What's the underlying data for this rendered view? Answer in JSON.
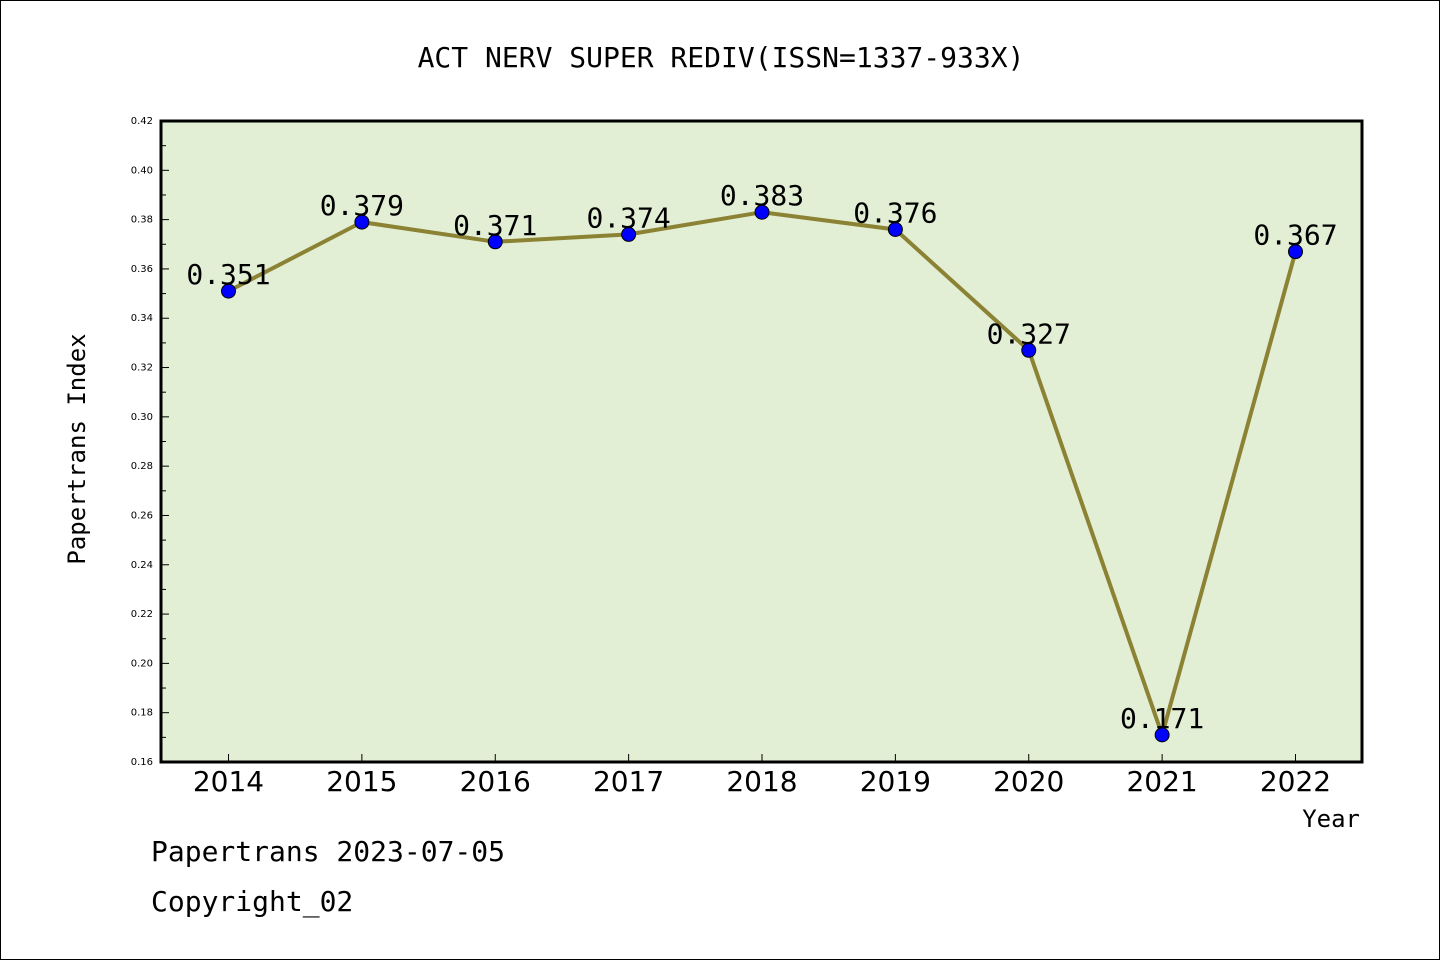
{
  "chart_data": {
    "type": "line",
    "title": "ACT NERV SUPER REDIV(ISSN=1337-933X)",
    "xlabel": "Year",
    "ylabel": "Papertrans Index",
    "categories": [
      "2014",
      "2015",
      "2016",
      "2017",
      "2018",
      "2019",
      "2020",
      "2021",
      "2022"
    ],
    "values": [
      0.351,
      0.379,
      0.371,
      0.374,
      0.383,
      0.376,
      0.327,
      0.171,
      0.367
    ],
    "value_labels": [
      "0.351",
      "0.379",
      "0.371",
      "0.374",
      "0.383",
      "0.376",
      "0.327",
      "0.171",
      "0.367"
    ],
    "ylim": [
      0.16,
      0.42
    ],
    "yticks": [
      "0.16",
      "0.18",
      "0.20",
      "0.22",
      "0.24",
      "0.26",
      "0.28",
      "0.30",
      "0.32",
      "0.34",
      "0.36",
      "0.38",
      "0.40",
      "0.42"
    ],
    "grid": false,
    "colors": {
      "plot_background": "#e2efd5",
      "line": "#8b8234",
      "marker": "#0000ff"
    }
  },
  "footer": {
    "date_text": "Papertrans 2023-07-05",
    "copyright_text": "Copyright_02"
  }
}
